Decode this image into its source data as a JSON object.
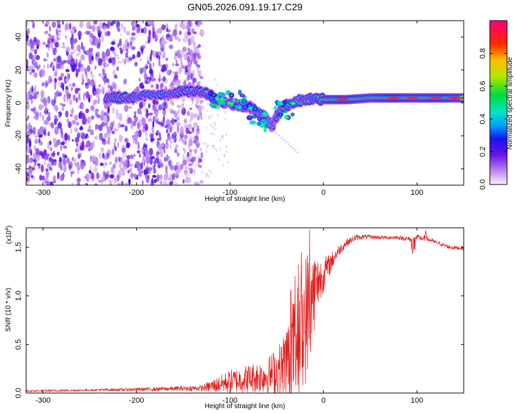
{
  "title": "GN05.2026.091.19.17.C29",
  "chart_data": [
    {
      "type": "heatmap",
      "name": "spectrogram",
      "xlabel": "Height of straight line (km)",
      "ylabel": "Frequency (Hz)",
      "xlim": [
        -318,
        150
      ],
      "ylim": [
        -50,
        50
      ],
      "x_ticks": [
        -300,
        -200,
        -100,
        0,
        100
      ],
      "x_tick_labels": [
        "-300",
        "-200",
        "-100",
        "0",
        "100"
      ],
      "y_ticks": [
        -40,
        -20,
        0,
        20,
        40
      ],
      "y_tick_labels": [
        "-40",
        "-20",
        "0",
        "20",
        "40"
      ],
      "noise_region_x": [
        -318,
        -130
      ],
      "signal_track": [
        {
          "x": -232,
          "f": 3,
          "amp": 0.45
        },
        {
          "x": -215,
          "f": 3,
          "amp": 0.5
        },
        {
          "x": -195,
          "f": 4,
          "amp": 0.45
        },
        {
          "x": -165,
          "f": 6,
          "amp": 0.45
        },
        {
          "x": -145,
          "f": 7,
          "amp": 0.5
        },
        {
          "x": -128,
          "f": 7,
          "amp": 0.5
        },
        {
          "x": -110,
          "f": 1,
          "amp": 0.5
        },
        {
          "x": -95,
          "f": -1,
          "amp": 0.55
        },
        {
          "x": -80,
          "f": -2,
          "amp": 0.6
        },
        {
          "x": -70,
          "f": -6,
          "amp": 0.55
        },
        {
          "x": -62,
          "f": -9,
          "amp": 0.5
        },
        {
          "x": -55,
          "f": -14,
          "amp": 0.4
        },
        {
          "x": -45,
          "f": -3,
          "amp": 0.55
        },
        {
          "x": -30,
          "f": 1,
          "amp": 0.65
        },
        {
          "x": -15,
          "f": 2,
          "amp": 0.7
        },
        {
          "x": 0,
          "f": 2,
          "amp": 0.85
        },
        {
          "x": 25,
          "f": 2,
          "amp": 0.9
        },
        {
          "x": 50,
          "f": 3,
          "amp": 0.8
        },
        {
          "x": 75,
          "f": 3,
          "amp": 0.95
        },
        {
          "x": 100,
          "f": 3,
          "amp": 0.85
        },
        {
          "x": 125,
          "f": 3,
          "amp": 0.95
        },
        {
          "x": 150,
          "f": 3,
          "amp": 0.8
        }
      ]
    },
    {
      "type": "colorbar",
      "name": "amplitude-colorbar",
      "label": "Normalized spectral amplitude",
      "range": [
        0,
        1
      ],
      "ticks": [
        0.0,
        0.2,
        0.4,
        0.6,
        0.8
      ],
      "tick_labels": [
        "0.0",
        "0.2",
        "0.4",
        "0.6",
        "0.8"
      ]
    },
    {
      "type": "line",
      "name": "snr-plot",
      "xlabel": "Height of straight line (km)",
      "ylabel": "SNR (10 * v/v)",
      "y_multiplier": "(x10",
      "y_exponent": "4",
      "xlim": [
        -318,
        150
      ],
      "ylim": [
        0,
        1.7
      ],
      "x_ticks": [
        -300,
        -200,
        -100,
        0,
        100
      ],
      "x_tick_labels": [
        "-300",
        "-200",
        "-100",
        "0",
        "100"
      ],
      "y_ticks": [
        0.0,
        0.5,
        1.0,
        1.5
      ],
      "y_tick_labels": [
        "0.0",
        "0.5",
        "1.0",
        "1.5"
      ],
      "color": "#e02020",
      "series": [
        {
          "name": "SNR",
          "x": [
            -318,
            -250,
            -180,
            -130,
            -115,
            -100,
            -80,
            -60,
            -45,
            -35,
            -25,
            -18,
            -12,
            -5,
            5,
            15,
            25,
            35,
            45,
            60,
            80,
            95,
            100,
            110,
            120,
            135,
            150
          ],
          "y": [
            0.02,
            0.03,
            0.04,
            0.05,
            0.08,
            0.12,
            0.15,
            0.18,
            0.25,
            0.4,
            0.6,
            0.8,
            1.0,
            1.15,
            1.3,
            1.45,
            1.55,
            1.6,
            1.61,
            1.6,
            1.6,
            1.58,
            1.6,
            1.59,
            1.55,
            1.5,
            1.49
          ],
          "spread": [
            0.01,
            0.01,
            0.02,
            0.03,
            0.08,
            0.12,
            0.15,
            0.18,
            0.3,
            0.5,
            0.6,
            0.7,
            0.5,
            0.25,
            0.12,
            0.06,
            0.04,
            0.03,
            0.02,
            0.02,
            0.02,
            0.03,
            0.03,
            0.03,
            0.02,
            0.02,
            0.02
          ]
        }
      ]
    }
  ]
}
